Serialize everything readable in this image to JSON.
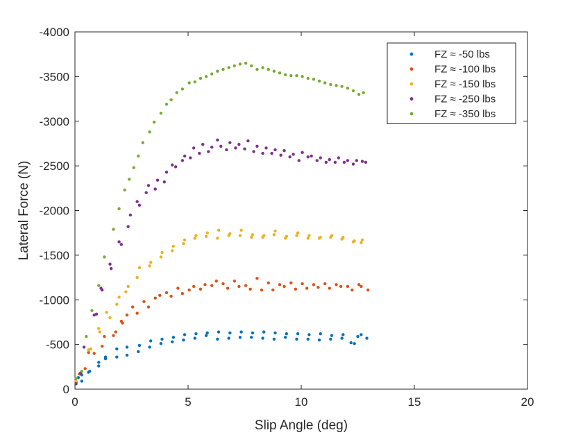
{
  "chart_data": {
    "type": "scatter",
    "title": "",
    "xlabel": "Slip Angle (deg)",
    "ylabel": "Lateral Force (N)",
    "xlim": [
      0,
      20
    ],
    "ylim": [
      0,
      -4000
    ],
    "y_reversed": true,
    "x_ticks": [
      0,
      5,
      10,
      15,
      20
    ],
    "x_tick_labels": [
      "0",
      "5",
      "10",
      "15",
      "20"
    ],
    "y_ticks": [
      0,
      -500,
      -1000,
      -1500,
      -2000,
      -2500,
      -3000,
      -3500,
      -4000
    ],
    "y_tick_labels": [
      "0",
      "-500",
      "-1000",
      "-1500",
      "-2000",
      "-2500",
      "-3000",
      "-3500",
      "-4000"
    ],
    "grid": false,
    "legend_position": "top-right",
    "series": [
      {
        "name": "FZ ≈ -50 lbs",
        "color": "#0072BD",
        "x": [
          0.05,
          0.15,
          0.3,
          0.3,
          0.6,
          0.65,
          1.05,
          1.05,
          1.35,
          1.35,
          1.85,
          1.85,
          2.3,
          2.3,
          2.8,
          2.85,
          3.3,
          3.35,
          3.8,
          3.85,
          4.3,
          4.35,
          4.8,
          4.85,
          5.3,
          5.35,
          5.8,
          5.85,
          6.3,
          6.35,
          6.8,
          6.85,
          7.3,
          7.35,
          7.8,
          7.85,
          8.3,
          8.35,
          8.8,
          8.85,
          9.3,
          9.35,
          9.8,
          9.85,
          10.3,
          10.35,
          10.8,
          10.85,
          11.3,
          11.35,
          11.8,
          11.85,
          12.2,
          12.35,
          12.5,
          12.65,
          12.9
        ],
        "y": [
          -80,
          -130,
          -90,
          -160,
          -190,
          -200,
          -300,
          -260,
          -340,
          -360,
          -360,
          -450,
          -380,
          -470,
          -420,
          -490,
          -470,
          -540,
          -510,
          -560,
          -530,
          -580,
          -550,
          -610,
          -570,
          -620,
          -600,
          -630,
          -560,
          -640,
          -570,
          -630,
          -580,
          -640,
          -580,
          -630,
          -570,
          -640,
          -560,
          -630,
          -580,
          -620,
          -560,
          -620,
          -560,
          -610,
          -550,
          -620,
          -560,
          -600,
          -570,
          -610,
          -520,
          -510,
          -590,
          -610,
          -570
        ]
      },
      {
        "name": "FZ ≈ -100 lbs",
        "color": "#D95319",
        "x": [
          0.05,
          0.2,
          0.45,
          0.6,
          0.85,
          1.2,
          1.3,
          1.7,
          1.8,
          2.05,
          2.1,
          2.3,
          2.55,
          2.75,
          3.05,
          3.25,
          3.55,
          3.75,
          4.05,
          4.25,
          4.55,
          4.75,
          5.05,
          5.25,
          5.55,
          5.75,
          6.05,
          6.25,
          6.55,
          6.75,
          7.05,
          7.25,
          7.55,
          7.75,
          8.05,
          8.25,
          8.55,
          8.75,
          9.05,
          9.25,
          9.55,
          9.75,
          10.05,
          10.25,
          10.55,
          10.75,
          11.05,
          11.25,
          11.55,
          11.75,
          12.05,
          12.25,
          12.55,
          12.65,
          12.95
        ],
        "y": [
          -80,
          -170,
          -230,
          -410,
          -400,
          -480,
          -590,
          -600,
          -640,
          -760,
          -740,
          -830,
          -920,
          -850,
          -980,
          -920,
          -1020,
          -1050,
          -1080,
          -1040,
          -1130,
          -1070,
          -1110,
          -1150,
          -1120,
          -1170,
          -1160,
          -1210,
          -1180,
          -1130,
          -1210,
          -1150,
          -1160,
          -1120,
          -1240,
          -1110,
          -1190,
          -1110,
          -1170,
          -1150,
          -1190,
          -1120,
          -1180,
          -1130,
          -1170,
          -1140,
          -1180,
          -1130,
          -1170,
          -1150,
          -1150,
          -1110,
          -1170,
          -1150,
          -1110
        ]
      },
      {
        "name": "FZ ≈ -150 lbs",
        "color": "#EDB120",
        "x": [
          0.05,
          0.3,
          0.6,
          0.7,
          1.05,
          1.1,
          1.4,
          1.55,
          1.85,
          1.95,
          2.25,
          2.35,
          2.75,
          2.85,
          3.3,
          3.35,
          3.8,
          3.85,
          4.3,
          4.35,
          4.8,
          4.85,
          5.3,
          5.35,
          5.8,
          5.85,
          6.3,
          6.35,
          6.8,
          6.85,
          7.3,
          7.35,
          7.8,
          7.85,
          8.3,
          8.35,
          8.8,
          8.85,
          9.3,
          9.35,
          9.8,
          9.85,
          10.3,
          10.35,
          10.8,
          10.85,
          11.3,
          11.35,
          11.8,
          11.85,
          12.3,
          12.35,
          12.65,
          12.7
        ],
        "y": [
          -90,
          -200,
          -440,
          -450,
          -680,
          -640,
          -860,
          -800,
          -950,
          -1030,
          -1090,
          -1150,
          -1250,
          -1360,
          -1380,
          -1420,
          -1480,
          -1530,
          -1550,
          -1600,
          -1630,
          -1670,
          -1690,
          -1720,
          -1710,
          -1750,
          -1690,
          -1780,
          -1720,
          -1740,
          -1720,
          -1780,
          -1700,
          -1730,
          -1700,
          -1720,
          -1730,
          -1770,
          -1690,
          -1710,
          -1720,
          -1750,
          -1690,
          -1720,
          -1690,
          -1700,
          -1700,
          -1720,
          -1680,
          -1700,
          -1650,
          -1660,
          -1640,
          -1670
        ]
      },
      {
        "name": "FZ ≈ -250 lbs",
        "color": "#7E2F8E",
        "x": [
          0.05,
          0.25,
          0.4,
          0.85,
          0.95,
          1.15,
          1.2,
          1.55,
          1.6,
          1.95,
          2.05,
          2.35,
          2.45,
          2.75,
          2.85,
          3.15,
          3.25,
          3.55,
          3.65,
          3.95,
          4.05,
          4.3,
          4.45,
          4.75,
          4.85,
          5.1,
          5.25,
          5.5,
          5.65,
          5.9,
          6.05,
          6.3,
          6.45,
          6.7,
          6.85,
          7.1,
          7.25,
          7.5,
          7.65,
          7.9,
          8.05,
          8.3,
          8.45,
          8.7,
          8.85,
          9.1,
          9.25,
          9.5,
          9.65,
          9.9,
          10.05,
          10.3,
          10.45,
          10.7,
          10.85,
          11.1,
          11.25,
          11.5,
          11.65,
          11.9,
          12.05,
          12.3,
          12.45,
          12.7,
          12.85
        ],
        "y": [
          -60,
          -180,
          -470,
          -830,
          -840,
          -1130,
          -1110,
          -1400,
          -1350,
          -1650,
          -1620,
          -1820,
          -1950,
          -2100,
          -2060,
          -2200,
          -2280,
          -2240,
          -2340,
          -2320,
          -2430,
          -2510,
          -2490,
          -2560,
          -2610,
          -2590,
          -2700,
          -2640,
          -2740,
          -2660,
          -2710,
          -2790,
          -2720,
          -2680,
          -2760,
          -2700,
          -2740,
          -2690,
          -2780,
          -2660,
          -2720,
          -2640,
          -2700,
          -2640,
          -2680,
          -2620,
          -2670,
          -2600,
          -2630,
          -2560,
          -2650,
          -2600,
          -2610,
          -2560,
          -2590,
          -2540,
          -2570,
          -2540,
          -2590,
          -2540,
          -2560,
          -2520,
          -2560,
          -2550,
          -2540
        ]
      },
      {
        "name": "FZ ≈ -350 lbs",
        "color": "#77AC30",
        "x": [
          0.05,
          0.3,
          0.5,
          0.75,
          1.05,
          1.3,
          1.7,
          1.95,
          2.2,
          2.4,
          2.6,
          2.8,
          3.0,
          3.3,
          3.5,
          3.8,
          4.05,
          4.25,
          4.5,
          4.75,
          5.05,
          5.3,
          5.55,
          5.8,
          6.05,
          6.3,
          6.55,
          6.8,
          7.05,
          7.3,
          7.55,
          7.8,
          8.05,
          8.3,
          8.55,
          8.8,
          9.05,
          9.3,
          9.55,
          9.8,
          10.05,
          10.3,
          10.55,
          10.8,
          11.05,
          11.3,
          11.55,
          11.8,
          12.05,
          12.3,
          12.55,
          12.75
        ],
        "y": [
          -120,
          -200,
          -590,
          -880,
          -1160,
          -1480,
          -1790,
          -2020,
          -2230,
          -2350,
          -2480,
          -2610,
          -2760,
          -2880,
          -2990,
          -3090,
          -3190,
          -3240,
          -3320,
          -3360,
          -3430,
          -3440,
          -3480,
          -3500,
          -3530,
          -3560,
          -3580,
          -3600,
          -3620,
          -3640,
          -3650,
          -3620,
          -3580,
          -3600,
          -3580,
          -3560,
          -3540,
          -3520,
          -3510,
          -3510,
          -3500,
          -3480,
          -3470,
          -3450,
          -3430,
          -3410,
          -3400,
          -3390,
          -3370,
          -3340,
          -3300,
          -3320
        ]
      }
    ]
  }
}
